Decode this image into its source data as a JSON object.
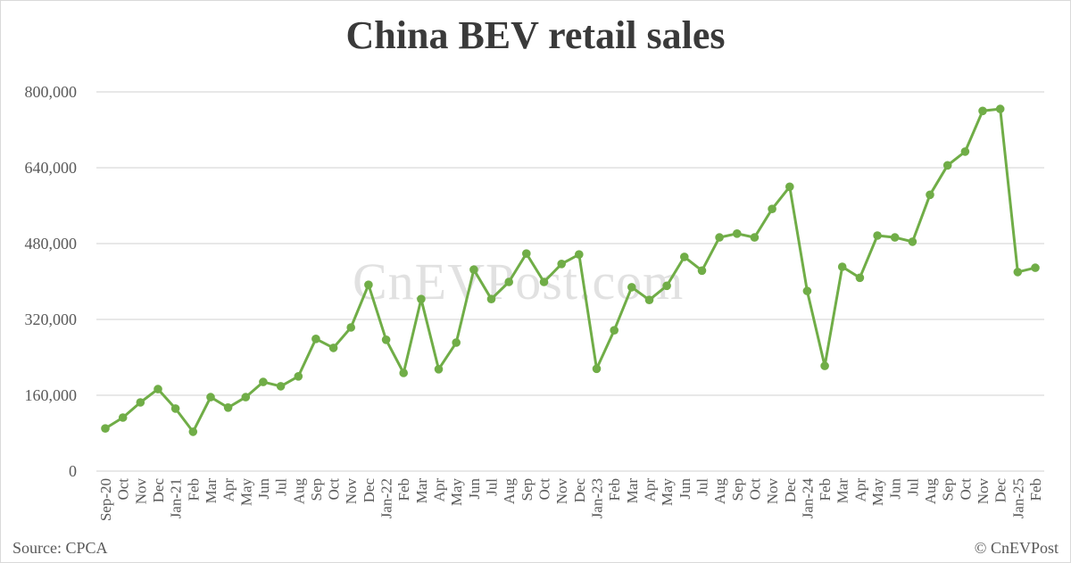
{
  "title": "China BEV retail sales",
  "watermark": "CnEVPost.com",
  "footer": {
    "source": "Source: CPCA",
    "copyright": "© CnEVPost"
  },
  "colors": {
    "line": "#70ad47",
    "grid": "#d9d9d9",
    "axis_text": "#595959",
    "title": "#3a3a3a"
  },
  "chart_data": {
    "type": "line",
    "title": "China BEV retail sales",
    "xlabel": "",
    "ylabel": "",
    "ylim": [
      0,
      800000
    ],
    "yticks": [
      0,
      160000,
      320000,
      480000,
      640000,
      800000
    ],
    "ytick_labels": [
      "0",
      "160,000",
      "320,000",
      "480,000",
      "640,000",
      "800,000"
    ],
    "grid": true,
    "legend": null,
    "categories": [
      "Sep-20",
      "Oct",
      "Nov",
      "Dec",
      "Jan-21",
      "Feb",
      "Mar",
      "Apr",
      "May",
      "Jun",
      "Jul",
      "Aug",
      "Sep",
      "Oct",
      "Nov",
      "Dec",
      "Jan-22",
      "Feb",
      "Mar",
      "Apr",
      "May",
      "Jun",
      "Jul",
      "Aug",
      "Sep",
      "Oct",
      "Nov",
      "Dec",
      "Jan-23",
      "Feb",
      "Mar",
      "Apr",
      "May",
      "Jun",
      "Jul",
      "Aug",
      "Sep",
      "Oct",
      "Nov",
      "Dec",
      "Jan-24",
      "Feb",
      "Mar",
      "Apr",
      "May",
      "Jun",
      "Jul",
      "Aug",
      "Sep",
      "Oct",
      "Nov",
      "Dec",
      "Jan-25",
      "Feb"
    ],
    "series": [
      {
        "name": "BEV retail sales",
        "values": [
          90000,
          113000,
          145000,
          173000,
          132000,
          83000,
          156000,
          134000,
          156000,
          188000,
          179000,
          200000,
          279000,
          260000,
          303000,
          393000,
          277000,
          207000,
          363000,
          215000,
          271000,
          425000,
          363000,
          399000,
          459000,
          399000,
          437000,
          457000,
          216000,
          297000,
          388000,
          361000,
          391000,
          452000,
          423000,
          493000,
          501000,
          493000,
          553000,
          600000,
          380000,
          222000,
          431000,
          408000,
          497000,
          493000,
          484000,
          583000,
          645000,
          674000,
          760000,
          764000,
          420000,
          429000
        ]
      }
    ]
  }
}
